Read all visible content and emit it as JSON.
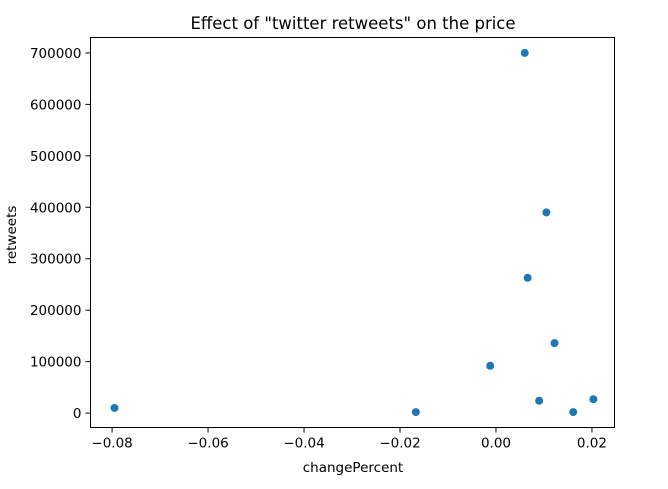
{
  "chart_data": {
    "type": "scatter",
    "title": "Effect of \"twitter retweets\" on the price",
    "xlabel": "changePercent",
    "ylabel": "retweets",
    "xlim": [
      -0.0845,
      0.0247
    ],
    "ylim": [
      -28000,
      730000
    ],
    "grid": false,
    "xticks": [
      -0.08,
      -0.06,
      -0.04,
      -0.02,
      0.0,
      0.02
    ],
    "xtick_labels": [
      "−0.08",
      "−0.06",
      "−0.04",
      "−0.02",
      "0.00",
      "0.02"
    ],
    "yticks": [
      0,
      100000,
      200000,
      300000,
      400000,
      500000,
      600000,
      700000
    ],
    "ytick_labels": [
      "0",
      "100000",
      "200000",
      "300000",
      "400000",
      "500000",
      "600000",
      "700000"
    ],
    "marker_color": "#1f77b4",
    "series": [
      {
        "x": [
          -0.0795,
          -0.0167,
          -0.0012,
          0.006,
          0.0066,
          0.009,
          0.0105,
          0.0122,
          0.0161,
          0.0203
        ],
        "y": [
          10000,
          2000,
          92000,
          700000,
          263000,
          24000,
          390000,
          136000,
          2000,
          27000
        ]
      }
    ]
  }
}
